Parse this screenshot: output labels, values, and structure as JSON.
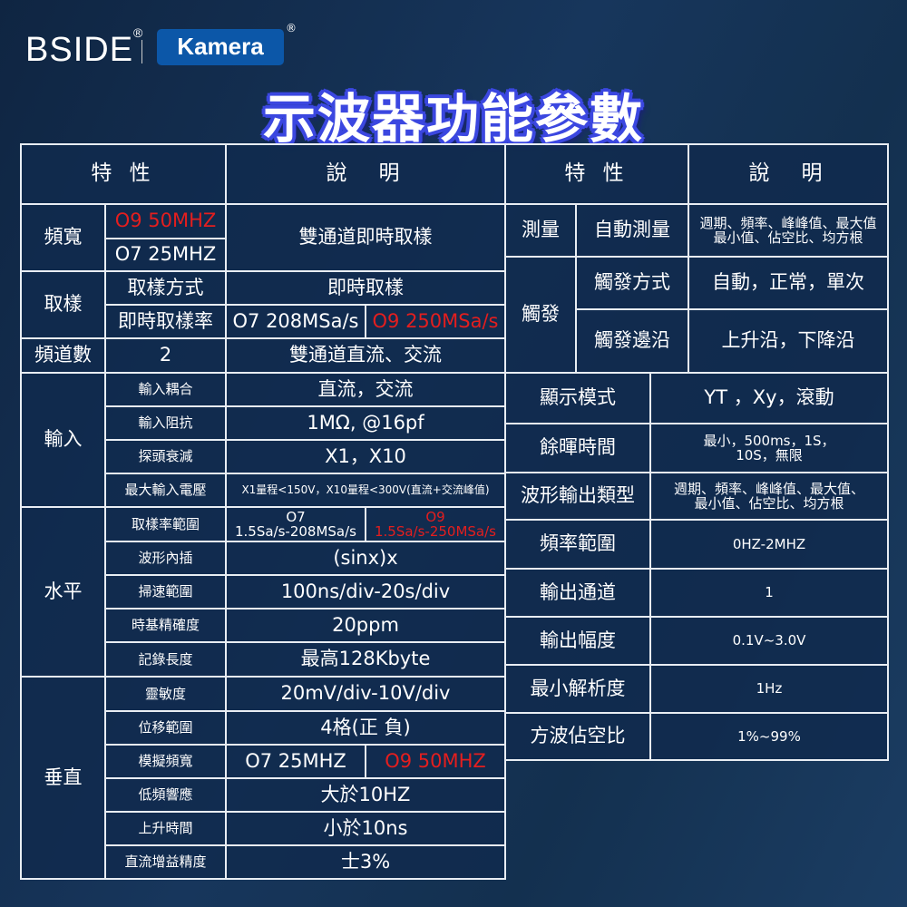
{
  "brand": {
    "bside": "BSIDE",
    "kamera": "Kamera",
    "registered": "®"
  },
  "title": "示波器功能參數",
  "colors": {
    "highlight": "#e41e1e",
    "border": "#e8edf3",
    "cell_bg": "#102a4e",
    "title_outline": "#3b47e0"
  },
  "left_table": {
    "header": [
      "特 性",
      "說　明"
    ],
    "cells": [
      "頻寬",
      "O9 50MHZ",
      "O7 25MHZ",
      "雙通道即時取樣",
      "取樣",
      "取樣方式",
      "即時取樣",
      "即時取樣率",
      "O7 208MSa/s",
      "O9 250MSa/s",
      "頻道數",
      "2",
      "雙通道直流、交流",
      "輸入",
      "輸入耦合",
      "直流，交流",
      "輸入阻抗",
      "1MΩ, @16pf",
      "探頭衰減",
      "X1，X10",
      "最大輸入電壓",
      "X1量程<150V，X10量程<300V(直流+交流峰值)",
      "水平",
      "取樣率範圍",
      "O7\n1.5Sa/s-208MSa/s",
      "O9\n1.5Sa/s-250MSa/s",
      "波形內插",
      "(sinx)x",
      "掃速範圍",
      "100ns/div-20s/div",
      "時基精確度",
      "20ppm",
      "記錄長度",
      "最高128Kbyte",
      "垂直",
      "靈敏度",
      "20mV/div-10V/div",
      "位移範圍",
      "4格(正 負)",
      "模擬頻寬",
      "O7 25MHZ",
      "O9 50MHZ",
      "低頻響應",
      "大於10HZ",
      "上升時間",
      "小於10ns",
      "直流增益精度",
      "士3%"
    ]
  },
  "right_table": {
    "header": [
      "特 性",
      "說　明"
    ],
    "cells": [
      "測量",
      "自動測量",
      "週期、頻率、峰峰值、最大值\n最小值、佔空比、均方根",
      "觸發",
      "觸發方式",
      "自動，正常，單次",
      "觸發邊沿",
      "上升沿，下降沿",
      "顯示模式",
      "YT ，Xy，滾動",
      "餘暉時間",
      "最小，500ms，1S，\n10S，無限",
      "波形輸出類型",
      "週期、頻率、峰峰值、最大值、\n最小值、佔空比、均方根",
      "頻率範圍",
      "0HZ-2MHZ",
      "輸出通道",
      "1",
      "輸出幅度",
      "0.1V~3.0V",
      "最小解析度",
      "1Hz",
      "方波佔空比",
      "1%~99%"
    ]
  }
}
